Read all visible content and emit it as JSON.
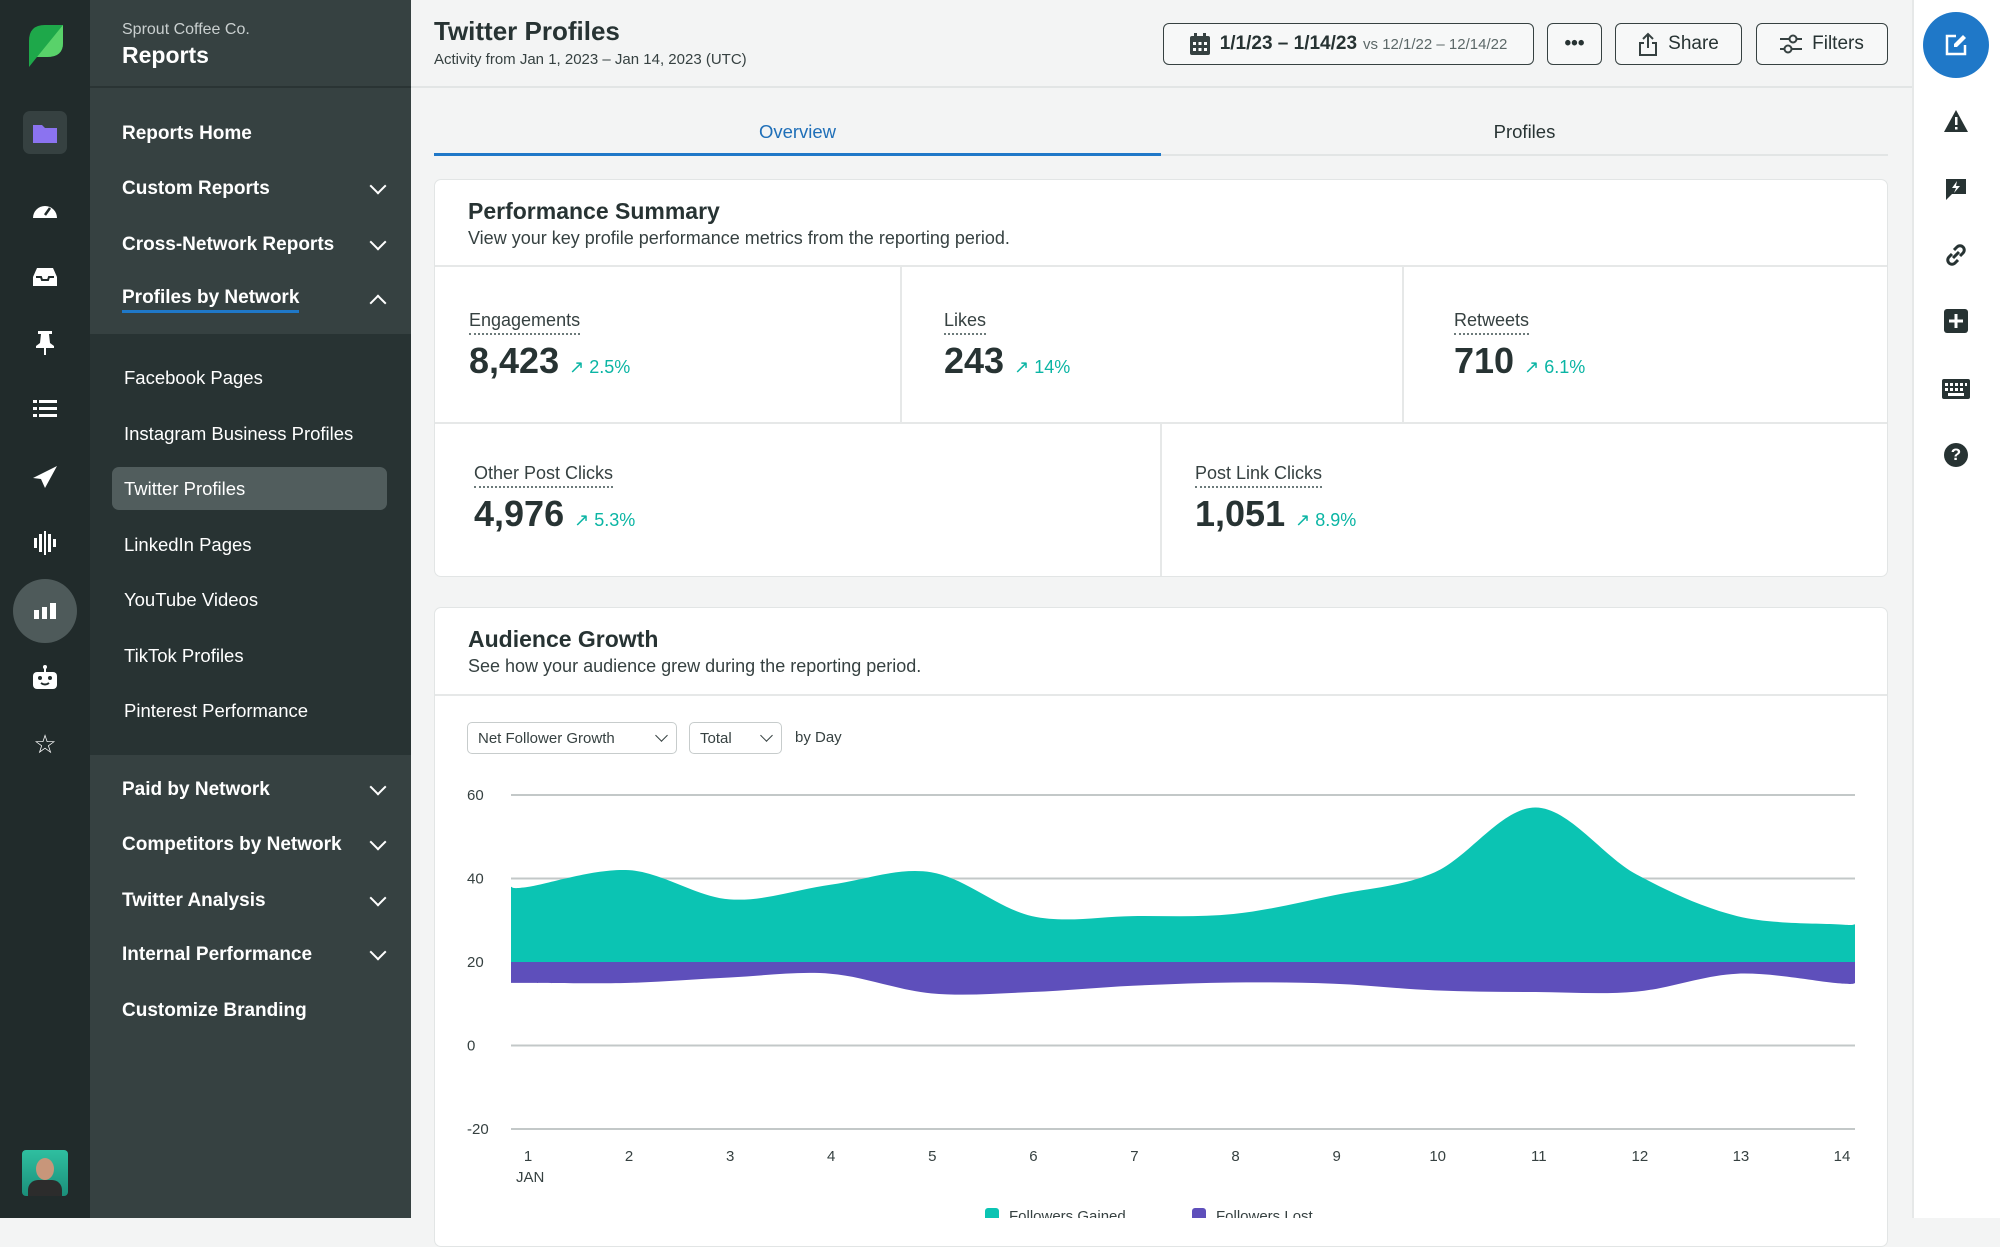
{
  "sidebar": {
    "org": "Sprout Coffee Co.",
    "title": "Reports",
    "items": [
      {
        "label": "Reports Home"
      },
      {
        "label": "Custom Reports"
      },
      {
        "label": "Cross-Network Reports"
      },
      {
        "label": "Profiles by Network"
      }
    ],
    "subitems": [
      {
        "label": "Facebook Pages"
      },
      {
        "label": "Instagram Business Profiles"
      },
      {
        "label": "Twitter Profiles"
      },
      {
        "label": "LinkedIn Pages"
      },
      {
        "label": "YouTube Videos"
      },
      {
        "label": "TikTok Profiles"
      },
      {
        "label": "Pinterest Performance"
      }
    ],
    "lower_items": [
      {
        "label": "Paid by Network"
      },
      {
        "label": "Competitors by Network"
      },
      {
        "label": "Twitter Analysis"
      },
      {
        "label": "Internal Performance"
      },
      {
        "label": "Customize Branding"
      }
    ]
  },
  "header": {
    "title": "Twitter Profiles",
    "subtitle": "Activity from Jan 1, 2023 – Jan 14, 2023 (UTC)",
    "date_range": "1/1/23 – 1/14/23",
    "compare_range": "vs 12/1/22 – 12/14/22",
    "more_label": "•••",
    "share_label": "Share",
    "filters_label": "Filters"
  },
  "tabs": [
    {
      "label": "Overview",
      "active": true
    },
    {
      "label": "Profiles",
      "active": false
    }
  ],
  "performance": {
    "title": "Performance Summary",
    "subtitle": "View your key profile performance metrics from the reporting period.",
    "metrics": [
      {
        "label": "Engagements",
        "value": "8,423",
        "change": "2.5%"
      },
      {
        "label": "Likes",
        "value": "243",
        "change": "14%"
      },
      {
        "label": "Retweets",
        "value": "710",
        "change": "6.1%"
      },
      {
        "label": "Other Post Clicks",
        "value": "4,976",
        "change": "5.3%"
      },
      {
        "label": "Post Link Clicks",
        "value": "1,051",
        "change": "8.9%"
      }
    ]
  },
  "audience": {
    "title": "Audience Growth",
    "subtitle": "See how your audience grew during the reporting period.",
    "metric_select": "Net Follower Growth",
    "mode_select": "Total",
    "granularity": "by Day"
  },
  "chart_data": {
    "type": "area",
    "x": [
      1,
      2,
      3,
      4,
      5,
      6,
      7,
      8,
      9,
      10,
      11,
      12,
      13,
      14
    ],
    "x_tick_labels": [
      "1",
      "2",
      "3",
      "4",
      "5",
      "6",
      "7",
      "8",
      "9",
      "10",
      "11",
      "12",
      "13",
      "14"
    ],
    "x_sublabel": "JAN",
    "y_ticks": [
      "60",
      "40",
      "20",
      "0",
      "-20"
    ],
    "ylim": [
      -20,
      60
    ],
    "baseline": 20,
    "grid": true,
    "legend_position": "bottom",
    "series": [
      {
        "name": "Followers Gained",
        "color": "#0bc4b3",
        "values": [
          38,
          42,
          35,
          38.5,
          41.5,
          31,
          31,
          31.5,
          36,
          41.5,
          57,
          41,
          31,
          29
        ]
      },
      {
        "name": "Followers Lost",
        "color": "#5e4fbb",
        "values": [
          15,
          15,
          16.3,
          17.2,
          12.5,
          12.8,
          14.3,
          15.1,
          14.8,
          13.2,
          12.8,
          12.9,
          17.2,
          14.9
        ]
      }
    ]
  },
  "colors": {
    "accent": "#1f78c8",
    "positive": "#0bb5a4",
    "rail": "#212b2b",
    "sidebar": "#364141"
  }
}
